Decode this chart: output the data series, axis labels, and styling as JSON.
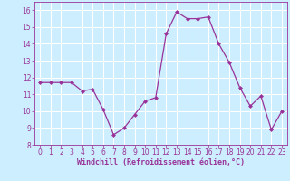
{
  "hours": [
    0,
    1,
    2,
    3,
    4,
    5,
    6,
    7,
    8,
    9,
    10,
    11,
    12,
    13,
    14,
    15,
    16,
    17,
    18,
    19,
    20,
    21,
    22,
    23
  ],
  "values": [
    11.7,
    11.7,
    11.7,
    11.7,
    11.2,
    11.3,
    10.1,
    8.6,
    9.0,
    9.8,
    10.6,
    10.8,
    14.6,
    15.9,
    15.5,
    15.5,
    15.6,
    14.0,
    12.9,
    11.4,
    10.3,
    10.9,
    8.9,
    10.0
  ],
  "line_color": "#993399",
  "marker": "D",
  "marker_size": 2.0,
  "line_width": 0.9,
  "bg_color": "#cceeff",
  "grid_color": "#ffffff",
  "xlabel": "Windchill (Refroidissement éolien,°C)",
  "xlim": [
    -0.5,
    23.5
  ],
  "ylim": [
    8,
    16.5
  ],
  "yticks": [
    8,
    9,
    10,
    11,
    12,
    13,
    14,
    15,
    16
  ],
  "xticks": [
    0,
    1,
    2,
    3,
    4,
    5,
    6,
    7,
    8,
    9,
    10,
    11,
    12,
    13,
    14,
    15,
    16,
    17,
    18,
    19,
    20,
    21,
    22,
    23
  ],
  "tick_color": "#993399",
  "label_color": "#993399",
  "label_fontsize": 6.0,
  "tick_fontsize": 5.5
}
